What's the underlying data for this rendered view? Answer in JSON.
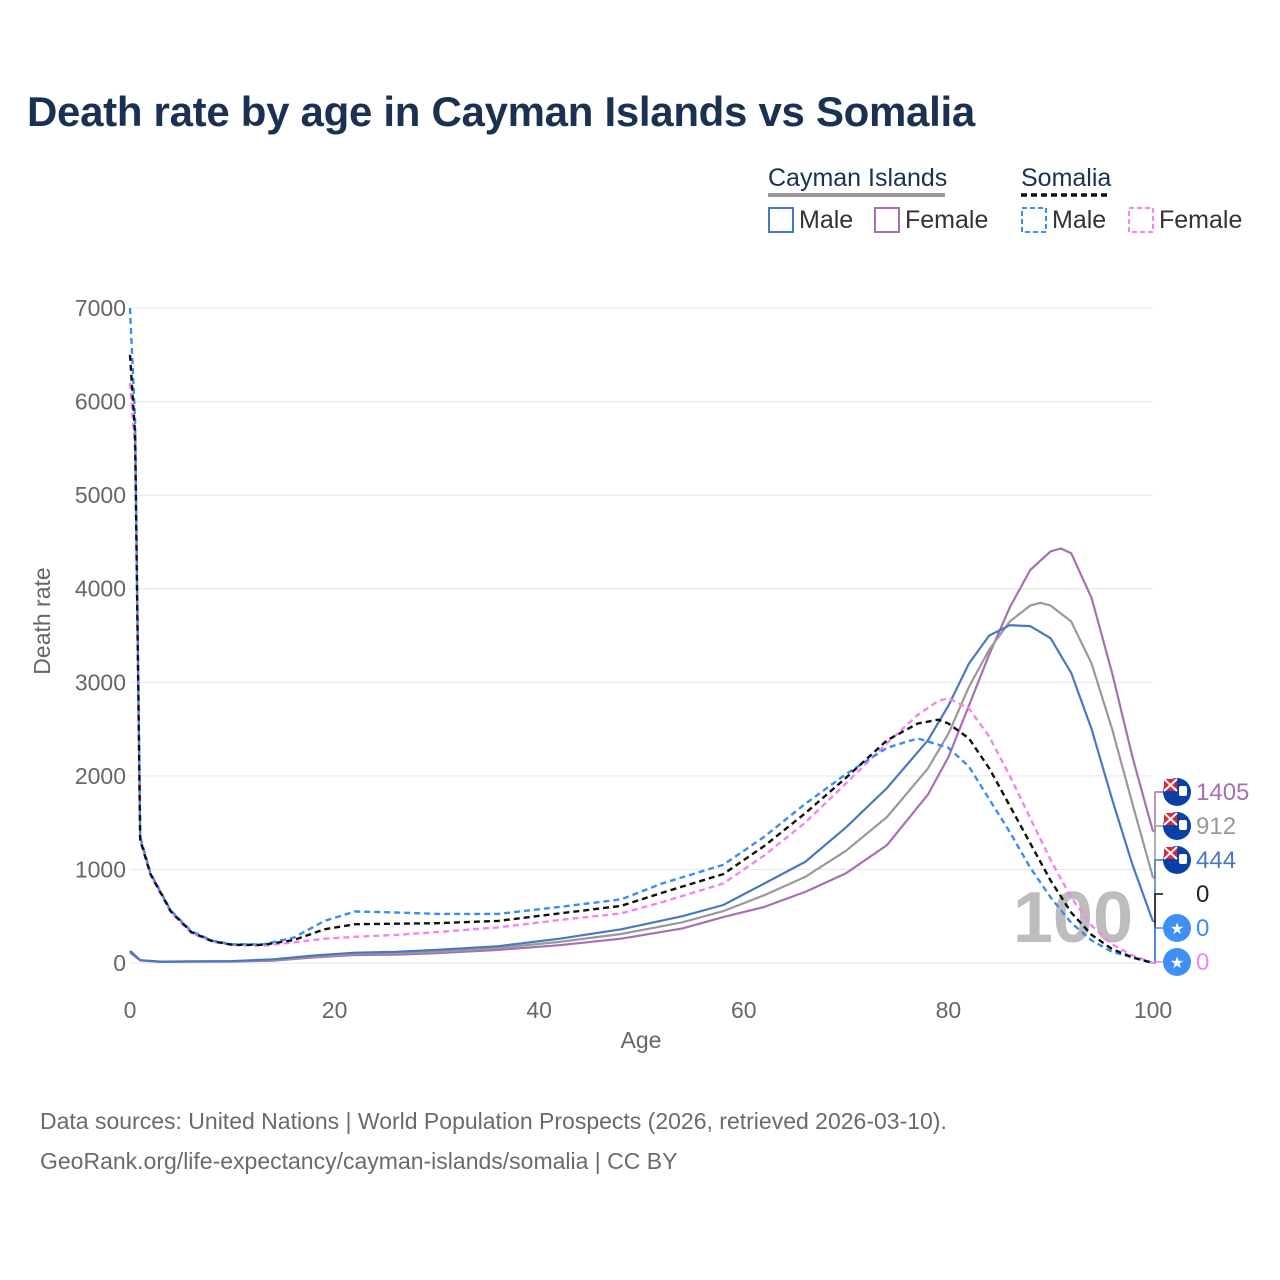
{
  "title": "Death rate by age in Cayman Islands vs Somalia",
  "legend": {
    "groups": [
      {
        "name": "Cayman Islands",
        "items": [
          "Male",
          "Female"
        ]
      },
      {
        "name": "Somalia",
        "items": [
          "Male",
          "Female"
        ]
      }
    ]
  },
  "footer": {
    "line1": "Data sources: United Nations | World Population Prospects (2026, retrieved 2026-03-10).",
    "line2": "GeoRank.org/life-expectancy/cayman-islands/somalia | CC BY"
  },
  "colors": {
    "cayman_male": "#4a78c0",
    "cayman_female": "#a86fb2",
    "cayman_total": "#999999",
    "somalia_male": "#3a8ef0",
    "somalia_female": "#f584ec",
    "somalia_total": "#111111",
    "grid": "#e6e6e6",
    "title": "#1a3152"
  },
  "chart_data": {
    "type": "line",
    "title": "Death rate by age in Cayman Islands vs Somalia",
    "xlabel": "Age",
    "ylabel": "Death rate",
    "xlim": [
      0,
      100
    ],
    "ylim": [
      0,
      7000
    ],
    "xticks": [
      0,
      20,
      40,
      60,
      80,
      100
    ],
    "yticks": [
      0,
      1000,
      2000,
      3000,
      4000,
      5000,
      6000,
      7000
    ],
    "watermark": "100",
    "series": [
      {
        "name": "Cayman Islands Male",
        "country": "Cayman Islands",
        "sex": "Male",
        "color_key": "cayman_male",
        "dash": false,
        "x": [
          0,
          1,
          3,
          6,
          10,
          14,
          18,
          22,
          26,
          30,
          36,
          42,
          48,
          54,
          58,
          62,
          66,
          70,
          74,
          78,
          80,
          82,
          84,
          86,
          88,
          90,
          92,
          94,
          96,
          98,
          100
        ],
        "y": [
          130,
          30,
          15,
          18,
          20,
          40,
          80,
          110,
          120,
          140,
          180,
          260,
          360,
          500,
          620,
          850,
          1080,
          1450,
          1870,
          2380,
          2750,
          3200,
          3500,
          3610,
          3600,
          3470,
          3100,
          2500,
          1750,
          1050,
          444
        ],
        "end_label": "444"
      },
      {
        "name": "Cayman Islands Female",
        "country": "Cayman Islands",
        "sex": "Female",
        "color_key": "cayman_female",
        "dash": false,
        "x": [
          0,
          1,
          3,
          6,
          10,
          14,
          18,
          22,
          26,
          30,
          36,
          42,
          48,
          54,
          58,
          62,
          66,
          70,
          74,
          78,
          80,
          82,
          84,
          86,
          88,
          90,
          91,
          92,
          94,
          96,
          98,
          100
        ],
        "y": [
          110,
          28,
          12,
          14,
          16,
          25,
          60,
          85,
          90,
          105,
          140,
          190,
          260,
          370,
          490,
          600,
          760,
          960,
          1260,
          1800,
          2200,
          2750,
          3300,
          3800,
          4200,
          4400,
          4430,
          4380,
          3900,
          3100,
          2200,
          1405
        ],
        "end_label": "1405"
      },
      {
        "name": "Cayman Islands Total",
        "country": "Cayman Islands",
        "sex": "Total",
        "color_key": "cayman_total",
        "dash": false,
        "x": [
          0,
          1,
          3,
          6,
          10,
          14,
          18,
          22,
          26,
          30,
          36,
          42,
          48,
          54,
          58,
          62,
          66,
          70,
          74,
          78,
          80,
          82,
          84,
          86,
          88,
          89,
          90,
          92,
          94,
          96,
          98,
          100
        ],
        "y": [
          120,
          29,
          13,
          16,
          18,
          32,
          70,
          98,
          105,
          122,
          160,
          225,
          310,
          435,
          555,
          725,
          920,
          1200,
          1560,
          2080,
          2450,
          2950,
          3350,
          3650,
          3820,
          3850,
          3820,
          3650,
          3200,
          2500,
          1700,
          912
        ],
        "end_label": "912"
      },
      {
        "name": "Somalia Male",
        "country": "Somalia",
        "sex": "Male",
        "color_key": "somalia_male",
        "dash": true,
        "x": [
          0,
          0.5,
          1,
          2,
          4,
          6,
          8,
          10,
          13,
          16,
          19,
          22,
          26,
          30,
          36,
          42,
          48,
          52,
          58,
          62,
          66,
          70,
          74,
          77,
          80,
          82,
          84,
          86,
          88,
          90,
          92,
          94,
          96,
          98,
          100
        ],
        "y": [
          7000,
          5800,
          1350,
          960,
          560,
          340,
          240,
          200,
          200,
          270,
          450,
          550,
          540,
          525,
          525,
          600,
          680,
          850,
          1050,
          1350,
          1700,
          2020,
          2300,
          2400,
          2300,
          2100,
          1750,
          1400,
          1020,
          700,
          430,
          240,
          120,
          60,
          0
        ],
        "end_label": "0"
      },
      {
        "name": "Somalia Female",
        "country": "Somalia",
        "sex": "Female",
        "color_key": "somalia_female",
        "dash": true,
        "x": [
          0,
          0.5,
          1,
          2,
          4,
          6,
          8,
          10,
          13,
          16,
          19,
          22,
          26,
          30,
          36,
          42,
          48,
          52,
          58,
          62,
          66,
          70,
          74,
          77,
          79,
          80,
          82,
          84,
          86,
          88,
          90,
          92,
          94,
          96,
          98,
          100
        ],
        "y": [
          6200,
          5500,
          1300,
          940,
          540,
          320,
          230,
          190,
          185,
          220,
          260,
          280,
          300,
          330,
          380,
          460,
          530,
          650,
          850,
          1150,
          1500,
          1920,
          2350,
          2650,
          2800,
          2830,
          2720,
          2420,
          2000,
          1550,
          1100,
          700,
          400,
          200,
          80,
          0
        ],
        "end_label": "0"
      },
      {
        "name": "Somalia Total",
        "country": "Somalia",
        "sex": "Total",
        "color_key": "somalia_total",
        "dash": true,
        "x": [
          0,
          0.5,
          1,
          2,
          4,
          6,
          8,
          10,
          13,
          16,
          19,
          22,
          26,
          30,
          36,
          42,
          48,
          52,
          58,
          62,
          66,
          70,
          74,
          77,
          79,
          80,
          82,
          84,
          86,
          88,
          90,
          92,
          94,
          96,
          98,
          100
        ],
        "y": [
          6500,
          5650,
          1320,
          950,
          550,
          330,
          235,
          195,
          195,
          245,
          360,
          415,
          420,
          425,
          450,
          530,
          610,
          750,
          950,
          1250,
          1600,
          1980,
          2380,
          2560,
          2600,
          2560,
          2400,
          2080,
          1680,
          1280,
          880,
          540,
          300,
          150,
          60,
          0
        ],
        "end_label": "0"
      }
    ]
  }
}
